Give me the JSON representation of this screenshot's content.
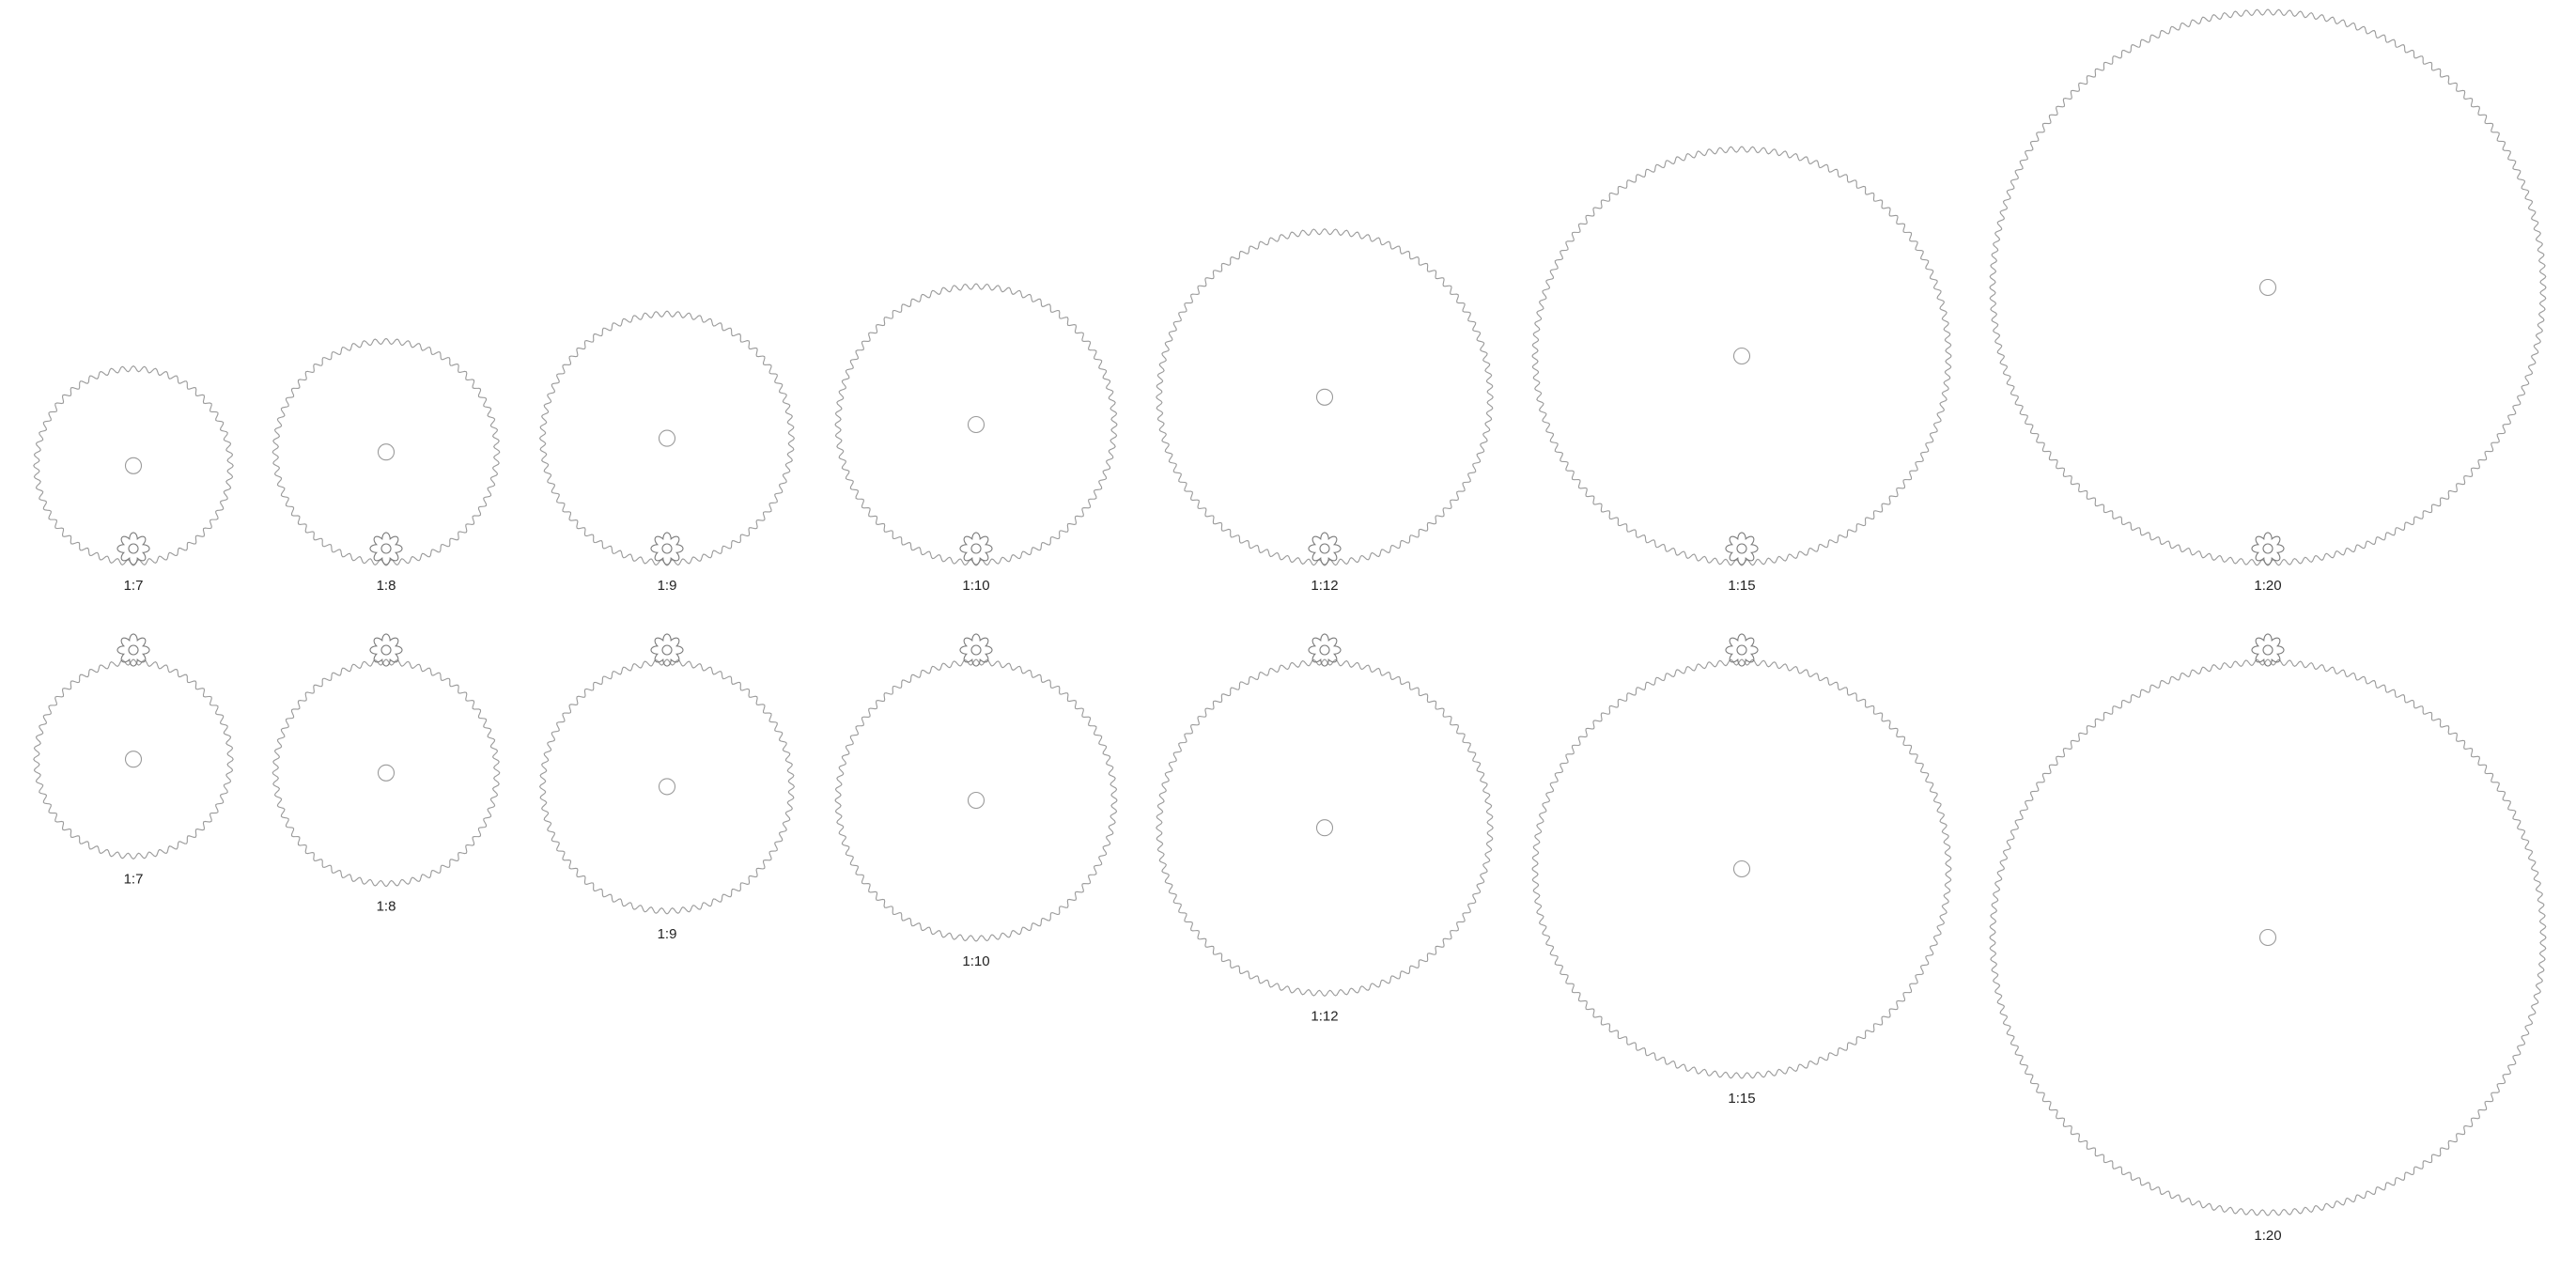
{
  "colors": {
    "background": "#ffffff",
    "gear_stroke": "#9a9a9a",
    "pinion_stroke": "#7a7a7a",
    "label": "#222222"
  },
  "pinion": {
    "teeth": 8
  },
  "rows": [
    {
      "pinion_position": "below",
      "gears": [
        {
          "label": "1:7",
          "ratio": 7
        },
        {
          "label": "1:8",
          "ratio": 8
        },
        {
          "label": "1:9",
          "ratio": 9
        },
        {
          "label": "1:10",
          "ratio": 10
        },
        {
          "label": "1:12",
          "ratio": 12
        },
        {
          "label": "1:15",
          "ratio": 15
        },
        {
          "label": "1:20",
          "ratio": 20
        }
      ]
    },
    {
      "pinion_position": "above",
      "gears": [
        {
          "label": "1:7",
          "ratio": 7
        },
        {
          "label": "1:8",
          "ratio": 8
        },
        {
          "label": "1:9",
          "ratio": 9
        },
        {
          "label": "1:10",
          "ratio": 10
        },
        {
          "label": "1:12",
          "ratio": 12
        },
        {
          "label": "1:15",
          "ratio": 15
        },
        {
          "label": "1:20",
          "ratio": 20
        }
      ]
    }
  ]
}
